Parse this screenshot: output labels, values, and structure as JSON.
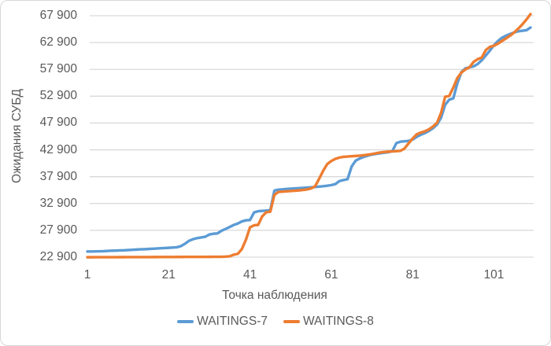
{
  "chart_data": {
    "type": "line",
    "xlabel": "Точка наблюдения",
    "ylabel": "Ожидания СУБД",
    "x_ticks": [
      1,
      21,
      41,
      61,
      81,
      101
    ],
    "y_ticks": [
      {
        "label": "22 900",
        "value": 22900
      },
      {
        "label": "27 900",
        "value": 27900
      },
      {
        "label": "32 900",
        "value": 32900
      },
      {
        "label": "37 900",
        "value": 37900
      },
      {
        "label": "42 900",
        "value": 42900
      },
      {
        "label": "47 900",
        "value": 47900
      },
      {
        "label": "52 900",
        "value": 52900
      },
      {
        "label": "57 900",
        "value": 57900
      },
      {
        "label": "62 900",
        "value": 62900
      },
      {
        "label": "67 900",
        "value": 67900
      }
    ],
    "y_min": 22900,
    "y_max": 67900,
    "x_min": 1,
    "x_max": 110,
    "grid": "horizontal",
    "legend_position": "bottom",
    "gridline_color": "#d9d9d9",
    "series": [
      {
        "name": "WAITINGS-7",
        "color": "#5B9BD5",
        "values": [
          23950,
          23960,
          23970,
          23990,
          24010,
          24060,
          24100,
          24120,
          24150,
          24180,
          24220,
          24260,
          24310,
          24350,
          24380,
          24420,
          24460,
          24510,
          24560,
          24600,
          24640,
          24690,
          24740,
          24950,
          25400,
          25950,
          26250,
          26450,
          26570,
          26700,
          27120,
          27260,
          27330,
          27820,
          28160,
          28520,
          28900,
          29160,
          29560,
          29760,
          29820,
          31230,
          31460,
          31520,
          31570,
          31650,
          35300,
          35480,
          35540,
          35600,
          35660,
          35710,
          35760,
          35810,
          35860,
          35910,
          35970,
          36040,
          36120,
          36220,
          36330,
          36520,
          37080,
          37260,
          37430,
          39800,
          40890,
          41300,
          41580,
          41830,
          42010,
          42140,
          42260,
          42360,
          42460,
          42650,
          44150,
          44420,
          44490,
          44560,
          44830,
          45320,
          45720,
          46020,
          46420,
          46920,
          47620,
          48900,
          51300,
          52250,
          52500,
          55300,
          57400,
          58100,
          58300,
          58450,
          58900,
          59600,
          60500,
          61400,
          62400,
          63200,
          63800,
          64200,
          64500,
          64800,
          65000,
          65100,
          65200,
          65700
        ]
      },
      {
        "name": "WAITINGS-8",
        "color": "#ED7D31",
        "values": [
          22880,
          22880,
          22885,
          22885,
          22890,
          22890,
          22895,
          22895,
          22900,
          22900,
          22905,
          22905,
          22910,
          22910,
          22915,
          22915,
          22920,
          22920,
          22925,
          22925,
          22930,
          22930,
          22935,
          22935,
          22940,
          22940,
          22945,
          22945,
          22950,
          22950,
          22955,
          22960,
          22965,
          22970,
          23000,
          23060,
          23360,
          23520,
          24400,
          26150,
          28450,
          28840,
          28910,
          30500,
          31280,
          31380,
          34500,
          35060,
          35120,
          35170,
          35220,
          35280,
          35340,
          35420,
          35520,
          35700,
          36100,
          37500,
          39000,
          40250,
          40820,
          41220,
          41460,
          41600,
          41660,
          41710,
          41760,
          41820,
          41900,
          42000,
          42120,
          42260,
          42400,
          42500,
          42560,
          42610,
          42660,
          42720,
          43150,
          44100,
          45000,
          45800,
          46120,
          46350,
          46720,
          47250,
          47950,
          49800,
          52800,
          52950,
          54500,
          56300,
          57300,
          57900,
          58300,
          59300,
          59800,
          60100,
          61500,
          62100,
          62300,
          62700,
          63200,
          63700,
          64200,
          64800,
          65500,
          66300,
          67200,
          68200
        ]
      }
    ]
  }
}
